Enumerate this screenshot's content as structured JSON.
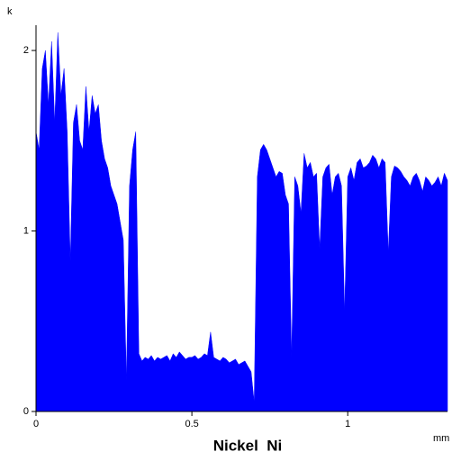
{
  "chart_data": {
    "type": "area",
    "title": "Nickel  Ni",
    "x_unit": "mm",
    "y_unit": "k",
    "color": "#0000ff",
    "xlim": [
      0,
      1.32
    ],
    "ylim": [
      0,
      2.14
    ],
    "xticks": [
      0,
      0.5,
      1
    ],
    "yticks": [
      0,
      1,
      2
    ],
    "x": [
      0,
      0.01,
      0.02,
      0.03,
      0.04,
      0.05,
      0.06,
      0.07,
      0.08,
      0.09,
      0.1,
      0.11,
      0.12,
      0.13,
      0.14,
      0.15,
      0.16,
      0.17,
      0.18,
      0.19,
      0.2,
      0.21,
      0.22,
      0.23,
      0.24,
      0.25,
      0.26,
      0.27,
      0.28,
      0.29,
      0.3,
      0.31,
      0.32,
      0.33,
      0.34,
      0.35,
      0.36,
      0.37,
      0.38,
      0.39,
      0.4,
      0.41,
      0.42,
      0.43,
      0.44,
      0.45,
      0.46,
      0.47,
      0.48,
      0.49,
      0.5,
      0.51,
      0.52,
      0.53,
      0.54,
      0.55,
      0.56,
      0.57,
      0.58,
      0.59,
      0.6,
      0.61,
      0.62,
      0.63,
      0.64,
      0.65,
      0.66,
      0.67,
      0.68,
      0.69,
      0.7,
      0.71,
      0.72,
      0.73,
      0.74,
      0.75,
      0.76,
      0.77,
      0.78,
      0.79,
      0.8,
      0.81,
      0.82,
      0.83,
      0.84,
      0.85,
      0.86,
      0.87,
      0.88,
      0.89,
      0.9,
      0.91,
      0.92,
      0.93,
      0.94,
      0.95,
      0.96,
      0.97,
      0.98,
      0.99,
      1,
      1.01,
      1.02,
      1.03,
      1.04,
      1.05,
      1.06,
      1.07,
      1.08,
      1.09,
      1.1,
      1.11,
      1.12,
      1.13,
      1.14,
      1.15,
      1.16,
      1.17,
      1.18,
      1.19,
      1.2,
      1.21,
      1.22,
      1.23,
      1.24,
      1.25,
      1.26,
      1.27,
      1.28,
      1.29,
      1.3,
      1.31,
      1.32
    ],
    "values": [
      1.55,
      1.45,
      1.9,
      2.0,
      1.7,
      2.05,
      1.6,
      2.1,
      1.75,
      1.9,
      1.55,
      0.83,
      1.6,
      1.7,
      1.5,
      1.45,
      1.8,
      1.55,
      1.75,
      1.65,
      1.7,
      1.5,
      1.4,
      1.35,
      1.25,
      1.2,
      1.15,
      1.05,
      0.95,
      0.17,
      1.25,
      1.45,
      1.55,
      0.32,
      0.28,
      0.3,
      0.29,
      0.31,
      0.28,
      0.3,
      0.29,
      0.3,
      0.31,
      0.28,
      0.32,
      0.3,
      0.33,
      0.31,
      0.29,
      0.3,
      0.3,
      0.31,
      0.29,
      0.3,
      0.32,
      0.31,
      0.44,
      0.3,
      0.29,
      0.28,
      0.3,
      0.29,
      0.27,
      0.28,
      0.29,
      0.26,
      0.27,
      0.28,
      0.25,
      0.22,
      0.05,
      1.3,
      1.45,
      1.48,
      1.45,
      1.4,
      1.35,
      1.3,
      1.33,
      1.32,
      1.2,
      1.15,
      0.3,
      1.3,
      1.25,
      1.1,
      1.43,
      1.35,
      1.38,
      1.3,
      1.32,
      0.9,
      1.3,
      1.35,
      1.37,
      1.2,
      1.3,
      1.32,
      1.25,
      0.55,
      1.3,
      1.35,
      1.28,
      1.38,
      1.4,
      1.35,
      1.36,
      1.38,
      1.42,
      1.4,
      1.35,
      1.4,
      1.38,
      0.88,
      1.3,
      1.36,
      1.35,
      1.33,
      1.3,
      1.28,
      1.25,
      1.3,
      1.32,
      1.28,
      1.22,
      1.3,
      1.28,
      1.25,
      1.27,
      1.3,
      1.25,
      1.32,
      1.28
    ]
  }
}
